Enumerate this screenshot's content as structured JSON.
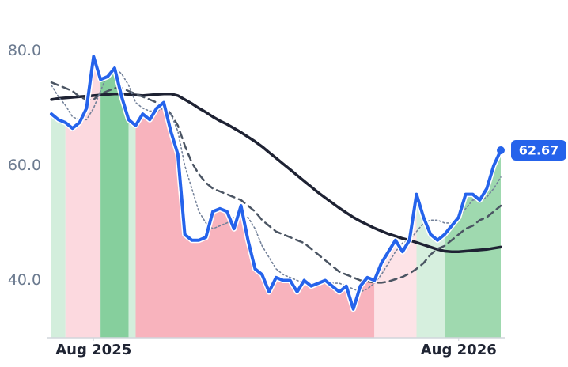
{
  "chart_data": {
    "type": "line",
    "x": [
      0,
      1,
      2,
      3,
      4,
      5,
      6,
      7,
      8,
      9,
      10,
      11,
      12,
      13,
      14,
      15,
      16,
      17,
      18,
      19,
      20,
      21,
      22,
      23,
      24,
      25,
      26,
      27,
      28,
      29,
      30,
      31,
      32,
      33,
      34,
      35,
      36,
      37,
      38,
      39,
      40,
      41,
      42,
      43,
      44,
      45,
      46,
      47,
      48,
      49,
      50,
      51,
      52,
      53,
      54,
      55,
      56,
      57,
      58,
      59,
      60,
      61,
      62,
      63,
      64
    ],
    "xlim": [
      0,
      64
    ],
    "xticks": [
      {
        "value": 6,
        "label": "Aug 2025"
      },
      {
        "value": 58,
        "label": "Aug 2026"
      }
    ],
    "ylim": [
      30,
      85
    ],
    "yticks": [
      {
        "value": 40,
        "label": "40.0"
      },
      {
        "value": 60,
        "label": "60.0"
      },
      {
        "value": 80,
        "label": "80.0"
      }
    ],
    "bands": [
      {
        "from": 0,
        "to": 2,
        "color": "#d3eedc"
      },
      {
        "from": 2,
        "to": 7,
        "color": "#fcd9df"
      },
      {
        "from": 7,
        "to": 11,
        "color": "#86cf9d"
      },
      {
        "from": 11,
        "to": 12,
        "color": "#d3eedc"
      },
      {
        "from": 12,
        "to": 46,
        "color": "#f8b3bd"
      },
      {
        "from": 46,
        "to": 52,
        "color": "#fde3e7"
      },
      {
        "from": 52,
        "to": 56,
        "color": "#d6efde"
      },
      {
        "from": 56,
        "to": 64,
        "color": "#9fd9af"
      }
    ],
    "series": [
      {
        "color": "#1e2233",
        "width": 3.5,
        "dash": "none",
        "values": [
          71.5,
          71.7,
          71.8,
          71.9,
          72,
          72.1,
          72.2,
          72.3,
          72.4,
          72.5,
          72.5,
          72.4,
          72.3,
          72.2,
          72.3,
          72.4,
          72.5,
          72.5,
          72.2,
          71.5,
          70.8,
          70,
          69.3,
          68.5,
          67.8,
          67.2,
          66.5,
          65.8,
          65,
          64.2,
          63.3,
          62.3,
          61.3,
          60.3,
          59.3,
          58.3,
          57.3,
          56.3,
          55.3,
          54.4,
          53.5,
          52.6,
          51.8,
          51,
          50.3,
          49.7,
          49.1,
          48.6,
          48.1,
          47.7,
          47.3,
          47,
          46.6,
          46.2,
          45.8,
          45.4,
          45.1,
          45,
          45,
          45.1,
          45.2,
          45.3,
          45.4,
          45.6,
          45.8
        ]
      },
      {
        "color": "#4b5563",
        "width": 2.5,
        "dash": "9 6",
        "values": [
          74.5,
          74,
          73.5,
          73,
          72,
          71.5,
          71.5,
          72.5,
          73,
          73.5,
          73.5,
          73,
          72.5,
          72,
          71.5,
          71,
          70.5,
          69,
          67,
          63.5,
          60.5,
          58.5,
          57,
          56,
          55.5,
          55,
          54.5,
          54,
          53,
          52,
          50.5,
          49.5,
          48.5,
          48,
          47.5,
          47,
          46.5,
          45.5,
          44.5,
          43.5,
          42.5,
          41.5,
          41,
          40.5,
          40,
          39.8,
          39.6,
          39.6,
          39.8,
          40.2,
          40.6,
          41.2,
          42,
          43,
          44.5,
          45.5,
          46,
          47,
          48,
          49,
          49.5,
          50.5,
          51,
          52,
          53
        ]
      },
      {
        "color": "#74829a",
        "width": 1.6,
        "dash": "2 3",
        "values": [
          74,
          72,
          70.5,
          68.5,
          68,
          68,
          70,
          73,
          76,
          77,
          76,
          74,
          71,
          70,
          69.5,
          69.5,
          70,
          69,
          66,
          60,
          56,
          52,
          50,
          49,
          49.5,
          50,
          51,
          51,
          51,
          49,
          46,
          44,
          42,
          41,
          40.5,
          40,
          39.5,
          39.5,
          39.5,
          39.5,
          39.5,
          39.5,
          39,
          38.5,
          38,
          38.5,
          39.5,
          41,
          43,
          45,
          46.5,
          47,
          48.5,
          50,
          50.5,
          50.5,
          50,
          50,
          51,
          52.5,
          54,
          54,
          54.5,
          56,
          58
        ]
      },
      {
        "color": "#2563eb",
        "width": 4,
        "dash": "none",
        "values": [
          69,
          68,
          67.5,
          66.5,
          67.5,
          70,
          79,
          75,
          75.5,
          77,
          72,
          68,
          67,
          69,
          68,
          70,
          71,
          66,
          62,
          48,
          47,
          47,
          47.5,
          52,
          52.5,
          52,
          49,
          53,
          47,
          42,
          41,
          38,
          40.5,
          40,
          40,
          38,
          40,
          39,
          39.5,
          40,
          39,
          38,
          39,
          35,
          39,
          40.5,
          40,
          43,
          45,
          47,
          45,
          47,
          55,
          51,
          48,
          47,
          48,
          49.5,
          51,
          55,
          55,
          54,
          56,
          60,
          62.67
        ]
      }
    ]
  }
}
